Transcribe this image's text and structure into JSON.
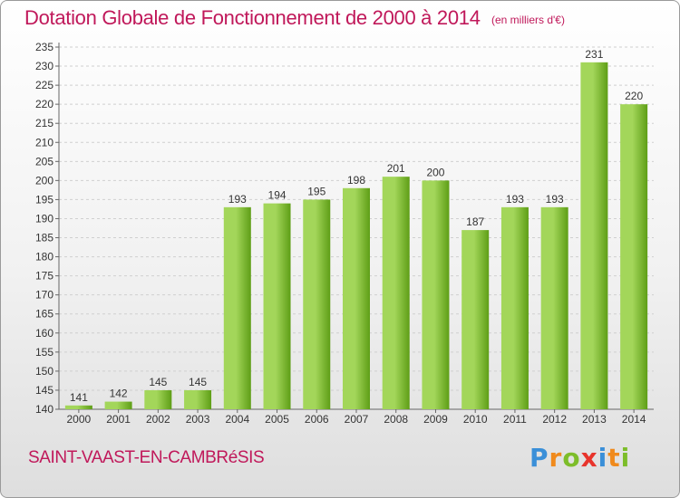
{
  "header": {
    "title": "Dotation Globale de Fonctionnement de 2000 à 2014",
    "subtitle": "(en milliers d'€)"
  },
  "footer": {
    "commune": "SAINT-VAAST-EN-CAMBRéSIS",
    "logo_letters": [
      "P",
      "r",
      "o",
      "x",
      "i",
      "t",
      "i"
    ],
    "logo_colors": [
      "#3a8fd8",
      "#f08a1c",
      "#7dbd2a",
      "#e8342c",
      "#3a8fd8",
      "#f08a1c",
      "#7dbd2a"
    ]
  },
  "chart_data": {
    "type": "bar",
    "categories": [
      "2000",
      "2001",
      "2002",
      "2003",
      "2004",
      "2005",
      "2006",
      "2007",
      "2008",
      "2009",
      "2010",
      "2011",
      "2012",
      "2013",
      "2014"
    ],
    "values": [
      141,
      142,
      145,
      145,
      193,
      194,
      195,
      198,
      201,
      200,
      187,
      193,
      193,
      231,
      220
    ],
    "ylim": [
      140,
      235
    ],
    "yticks": [
      140,
      145,
      150,
      155,
      160,
      165,
      170,
      175,
      180,
      185,
      190,
      195,
      200,
      205,
      210,
      215,
      220,
      225,
      230,
      235
    ],
    "grid": true,
    "bar_color_light": "#a3d65a",
    "bar_color_dark": "#5e9e16"
  }
}
